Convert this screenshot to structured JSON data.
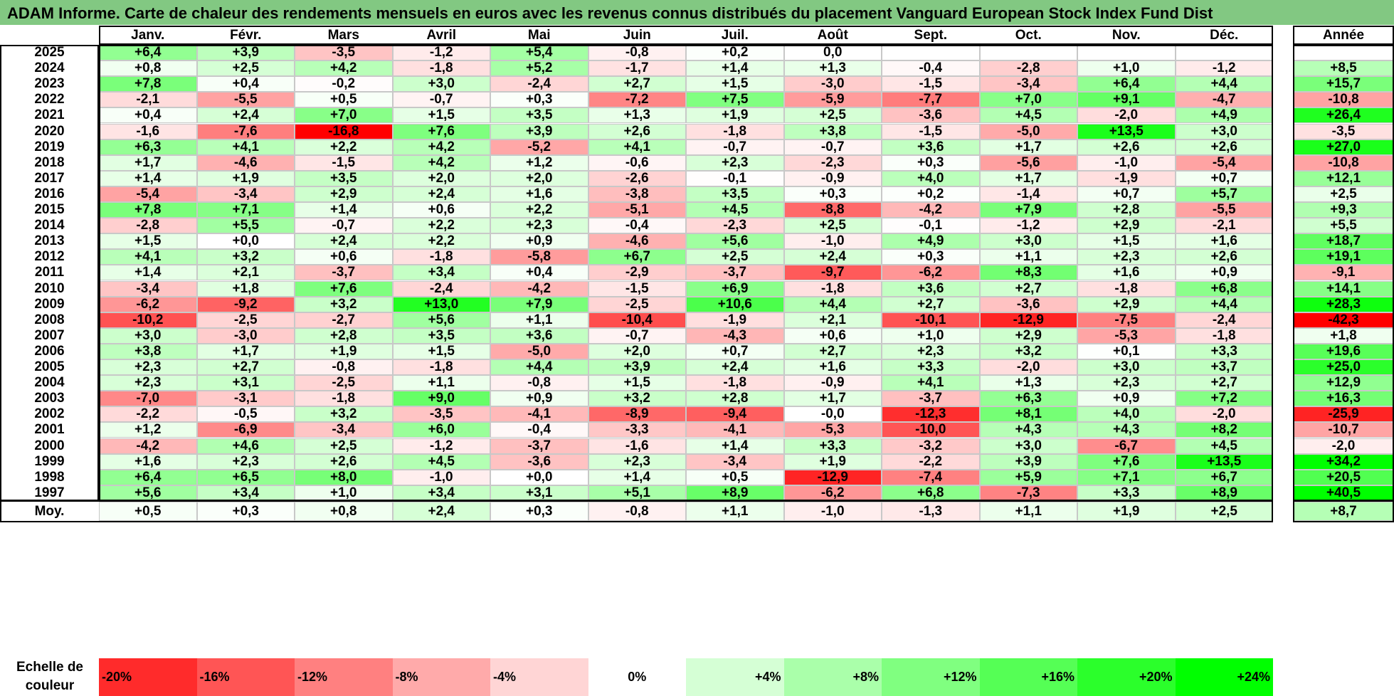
{
  "title": "ADAM Informe. Carte de chaleur des rendements mensuels en euros avec les revenus connus distribués du placement Vanguard European Stock Index Fund Dist",
  "chart_data": {
    "type": "heatmap",
    "months": [
      "Janv.",
      "Févr.",
      "Mars",
      "Avril",
      "Mai",
      "Juin",
      "Juil.",
      "Août",
      "Sept.",
      "Oct.",
      "Nov.",
      "Déc."
    ],
    "year_header": "Année",
    "rows": [
      {
        "year": "2025",
        "values": [
          "+6,4",
          "+3,9",
          "-3,5",
          "-1,2",
          "+5,4",
          "-0,8",
          "+0,2",
          "0,0",
          "",
          "",
          "",
          ""
        ],
        "annual": ""
      },
      {
        "year": "2024",
        "values": [
          "+0,8",
          "+2,5",
          "+4,2",
          "-1,8",
          "+5,2",
          "-1,7",
          "+1,4",
          "+1,3",
          "-0,4",
          "-2,8",
          "+1,0",
          "-1,2"
        ],
        "annual": "+8,5"
      },
      {
        "year": "2023",
        "values": [
          "+7,8",
          "+0,4",
          "-0,2",
          "+3,0",
          "-2,4",
          "+2,7",
          "+1,5",
          "-3,0",
          "-1,5",
          "-3,4",
          "+6,4",
          "+4,4"
        ],
        "annual": "+15,7"
      },
      {
        "year": "2022",
        "values": [
          "-2,1",
          "-5,5",
          "+0,5",
          "-0,7",
          "+0,3",
          "-7,2",
          "+7,5",
          "-5,9",
          "-7,7",
          "+7,0",
          "+9,1",
          "-4,7"
        ],
        "annual": "-10,8"
      },
      {
        "year": "2021",
        "values": [
          "+0,4",
          "+2,4",
          "+7,0",
          "+1,5",
          "+3,5",
          "+1,3",
          "+1,9",
          "+2,5",
          "-3,6",
          "+4,5",
          "-2,0",
          "+4,9"
        ],
        "annual": "+26,4"
      },
      {
        "year": "2020",
        "values": [
          "-1,6",
          "-7,6",
          "-16,8",
          "+7,6",
          "+3,9",
          "+2,6",
          "-1,8",
          "+3,8",
          "-1,5",
          "-5,0",
          "+13,5",
          "+3,0"
        ],
        "annual": "-3,5"
      },
      {
        "year": "2019",
        "values": [
          "+6,3",
          "+4,1",
          "+2,2",
          "+4,2",
          "-5,2",
          "+4,1",
          "-0,7",
          "-0,7",
          "+3,6",
          "+1,7",
          "+2,6",
          "+2,6"
        ],
        "annual": "+27,0"
      },
      {
        "year": "2018",
        "values": [
          "+1,7",
          "-4,6",
          "-1,5",
          "+4,2",
          "+1,2",
          "-0,6",
          "+2,3",
          "-2,3",
          "+0,3",
          "-5,6",
          "-1,0",
          "-5,4"
        ],
        "annual": "-10,8"
      },
      {
        "year": "2017",
        "values": [
          "+1,4",
          "+1,9",
          "+3,5",
          "+2,0",
          "+2,0",
          "-2,6",
          "-0,1",
          "-0,9",
          "+4,0",
          "+1,7",
          "-1,9",
          "+0,7"
        ],
        "annual": "+12,1"
      },
      {
        "year": "2016",
        "values": [
          "-5,4",
          "-3,4",
          "+2,9",
          "+2,4",
          "+1,6",
          "-3,8",
          "+3,5",
          "+0,3",
          "+0,2",
          "-1,4",
          "+0,7",
          "+5,7"
        ],
        "annual": "+2,5"
      },
      {
        "year": "2015",
        "values": [
          "+7,8",
          "+7,1",
          "+1,4",
          "+0,6",
          "+2,2",
          "-5,1",
          "+4,5",
          "-8,8",
          "-4,2",
          "+7,9",
          "+2,8",
          "-5,5"
        ],
        "annual": "+9,3"
      },
      {
        "year": "2014",
        "values": [
          "-2,8",
          "+5,5",
          "-0,7",
          "+2,2",
          "+2,3",
          "-0,4",
          "-2,3",
          "+2,5",
          "-0,1",
          "-1,2",
          "+2,9",
          "-2,1"
        ],
        "annual": "+5,5"
      },
      {
        "year": "2013",
        "values": [
          "+1,5",
          "+0,0",
          "+2,4",
          "+2,2",
          "+0,9",
          "-4,6",
          "+5,6",
          "-1,0",
          "+4,9",
          "+3,0",
          "+1,5",
          "+1,6"
        ],
        "annual": "+18,7"
      },
      {
        "year": "2012",
        "values": [
          "+4,1",
          "+3,2",
          "+0,6",
          "-1,8",
          "-5,8",
          "+6,7",
          "+2,5",
          "+2,4",
          "+0,3",
          "+1,1",
          "+2,3",
          "+2,6"
        ],
        "annual": "+19,1"
      },
      {
        "year": "2011",
        "values": [
          "+1,4",
          "+2,1",
          "-3,7",
          "+3,4",
          "+0,4",
          "-2,9",
          "-3,7",
          "-9,7",
          "-6,2",
          "+8,3",
          "+1,6",
          "+0,9"
        ],
        "annual": "-9,1"
      },
      {
        "year": "2010",
        "values": [
          "-3,4",
          "+1,8",
          "+7,6",
          "-2,4",
          "-4,2",
          "-1,5",
          "+6,9",
          "-1,8",
          "+3,6",
          "+2,7",
          "-1,8",
          "+6,8"
        ],
        "annual": "+14,1"
      },
      {
        "year": "2009",
        "values": [
          "-6,2",
          "-9,2",
          "+3,2",
          "+13,0",
          "+7,9",
          "-2,5",
          "+10,6",
          "+4,4",
          "+2,7",
          "-3,6",
          "+2,9",
          "+4,4"
        ],
        "annual": "+28,3"
      },
      {
        "year": "2008",
        "values": [
          "-10,2",
          "-2,5",
          "-2,7",
          "+5,6",
          "+1,1",
          "-10,4",
          "-1,9",
          "+2,1",
          "-10,1",
          "-12,9",
          "-7,5",
          "-2,4"
        ],
        "annual": "-42,3"
      },
      {
        "year": "2007",
        "values": [
          "+3,0",
          "-3,0",
          "+2,8",
          "+3,5",
          "+3,6",
          "-0,7",
          "-4,3",
          "+0,6",
          "+1,0",
          "+2,9",
          "-5,3",
          "-1,8"
        ],
        "annual": "+1,8"
      },
      {
        "year": "2006",
        "values": [
          "+3,8",
          "+1,7",
          "+1,9",
          "+1,5",
          "-5,0",
          "+2,0",
          "+0,7",
          "+2,7",
          "+2,3",
          "+3,2",
          "+0,1",
          "+3,3"
        ],
        "annual": "+19,6"
      },
      {
        "year": "2005",
        "values": [
          "+2,3",
          "+2,7",
          "-0,8",
          "-1,8",
          "+4,4",
          "+3,9",
          "+2,4",
          "+1,6",
          "+3,3",
          "-2,0",
          "+3,0",
          "+3,7"
        ],
        "annual": "+25,0"
      },
      {
        "year": "2004",
        "values": [
          "+2,3",
          "+3,1",
          "-2,5",
          "+1,1",
          "-0,8",
          "+1,5",
          "-1,8",
          "-0,9",
          "+4,1",
          "+1,3",
          "+2,3",
          "+2,7"
        ],
        "annual": "+12,9"
      },
      {
        "year": "2003",
        "values": [
          "-7,0",
          "-3,1",
          "-1,8",
          "+9,0",
          "+0,9",
          "+3,2",
          "+2,8",
          "+1,7",
          "-3,7",
          "+6,3",
          "+0,9",
          "+7,2"
        ],
        "annual": "+16,3"
      },
      {
        "year": "2002",
        "values": [
          "-2,2",
          "-0,5",
          "+3,2",
          "-3,5",
          "-4,1",
          "-8,9",
          "-9,4",
          "-0,0",
          "-12,3",
          "+8,1",
          "+4,0",
          "-2,0"
        ],
        "annual": "-25,9"
      },
      {
        "year": "2001",
        "values": [
          "+1,2",
          "-6,9",
          "-3,4",
          "+6,0",
          "-0,4",
          "-3,3",
          "-4,1",
          "-5,3",
          "-10,0",
          "+4,3",
          "+4,3",
          "+8,2"
        ],
        "annual": "-10,7"
      },
      {
        "year": "2000",
        "values": [
          "-4,2",
          "+4,6",
          "+2,5",
          "-1,2",
          "-3,7",
          "-1,6",
          "+1,4",
          "+3,3",
          "-3,2",
          "+3,0",
          "-6,7",
          "+4,5"
        ],
        "annual": "-2,0"
      },
      {
        "year": "1999",
        "values": [
          "+1,6",
          "+2,3",
          "+2,6",
          "+4,5",
          "-3,6",
          "+2,3",
          "-3,4",
          "+1,9",
          "-2,2",
          "+3,9",
          "+7,6",
          "+13,5"
        ],
        "annual": "+34,2"
      },
      {
        "year": "1998",
        "values": [
          "+6,4",
          "+6,5",
          "+8,0",
          "-1,0",
          "+0,0",
          "+1,4",
          "+0,5",
          "-12,9",
          "-7,4",
          "+5,9",
          "+7,1",
          "+6,7"
        ],
        "annual": "+20,5"
      },
      {
        "year": "1997",
        "values": [
          "+5,6",
          "+3,4",
          "+1,0",
          "+3,4",
          "+3,1",
          "+5,1",
          "+8,9",
          "-6,2",
          "+6,8",
          "-7,3",
          "+3,3",
          "+8,9"
        ],
        "annual": "+40,5"
      }
    ],
    "average": {
      "label": "Moy.",
      "values": [
        "+0,5",
        "+0,3",
        "+0,8",
        "+2,4",
        "+0,3",
        "-0,8",
        "+1,1",
        "-1,0",
        "-1,3",
        "+1,1",
        "+1,9",
        "+2,5"
      ],
      "annual": "+8,7"
    },
    "scale": {
      "label": "Echelle de couleur",
      "stops": [
        "-20%",
        "-16%",
        "-12%",
        "-8%",
        "-4%",
        "0%",
        "+4%",
        "+8%",
        "+12%",
        "+16%",
        "+20%",
        "+24%"
      ],
      "values": [
        -20,
        -16,
        -12,
        -8,
        -4,
        0,
        4,
        8,
        12,
        16,
        20,
        24
      ]
    },
    "colors": {
      "negative_max": "#ff0000",
      "neutral": "#ffffff",
      "positive_max": "#00ff00",
      "title_bg": "#82c882"
    }
  }
}
